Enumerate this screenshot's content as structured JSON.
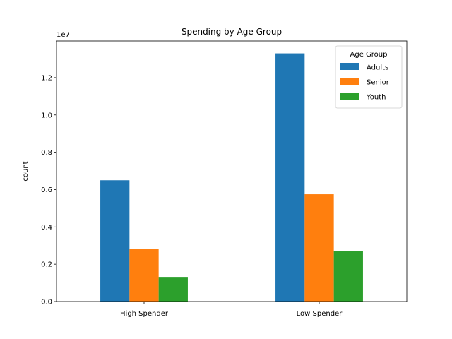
{
  "chart_data": {
    "type": "bar",
    "title": "Spending by Age Group",
    "xlabel": "",
    "ylabel": "count",
    "offset_label": "1e7",
    "categories": [
      "High Spender",
      "Low Spender"
    ],
    "series": [
      {
        "name": "Adults",
        "values": [
          6500000,
          13300000
        ],
        "color": "#1f77b4"
      },
      {
        "name": "Senior",
        "values": [
          2800000,
          5750000
        ],
        "color": "#ff7f0e"
      },
      {
        "name": "Youth",
        "values": [
          1320000,
          2720000
        ],
        "color": "#2ca02c"
      }
    ],
    "ylim": [
      0,
      13965000
    ],
    "yticks": [
      0,
      2000000,
      4000000,
      6000000,
      8000000,
      10000000,
      12000000
    ],
    "ytick_labels": [
      "0.0",
      "0.2",
      "0.4",
      "0.6",
      "0.8",
      "1.0",
      "1.2"
    ],
    "legend": {
      "title": "Age Group",
      "placement": "top-right"
    },
    "grid": false
  }
}
